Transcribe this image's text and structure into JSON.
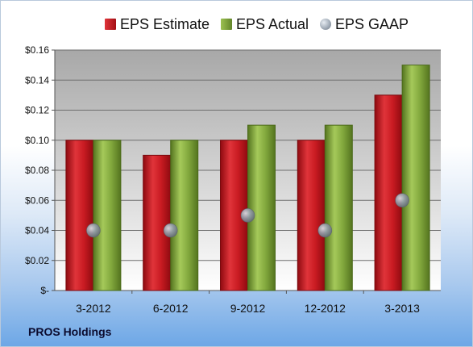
{
  "chart_data": {
    "type": "bar",
    "categories": [
      "3-2012",
      "6-2012",
      "9-2012",
      "12-2012",
      "3-2013"
    ],
    "series": [
      {
        "name": "EPS Estimate",
        "kind": "bar",
        "color": "#c0151b",
        "values": [
          0.1,
          0.09,
          0.1,
          0.1,
          0.13
        ]
      },
      {
        "name": "EPS Actual",
        "kind": "bar",
        "color": "#7ea23a",
        "values": [
          0.1,
          0.1,
          0.11,
          0.11,
          0.15
        ]
      },
      {
        "name": "EPS GAAP",
        "kind": "marker",
        "color": "#8d96a2",
        "values": [
          0.04,
          0.04,
          0.05,
          0.04,
          0.06
        ]
      }
    ],
    "ylim": [
      0,
      0.16
    ],
    "yticks": [
      {
        "value": 0.16,
        "label": "$0.16"
      },
      {
        "value": 0.14,
        "label": "$0.14"
      },
      {
        "value": 0.12,
        "label": "$0.12"
      },
      {
        "value": 0.1,
        "label": "$0.10"
      },
      {
        "value": 0.08,
        "label": "$0.08"
      },
      {
        "value": 0.06,
        "label": "$0.06"
      },
      {
        "value": 0.04,
        "label": "$0.04"
      },
      {
        "value": 0.02,
        "label": "$0.02"
      },
      {
        "value": 0,
        "label": "$-"
      }
    ],
    "grid": true,
    "legend_position": "top",
    "footer": "PROS Holdings"
  }
}
